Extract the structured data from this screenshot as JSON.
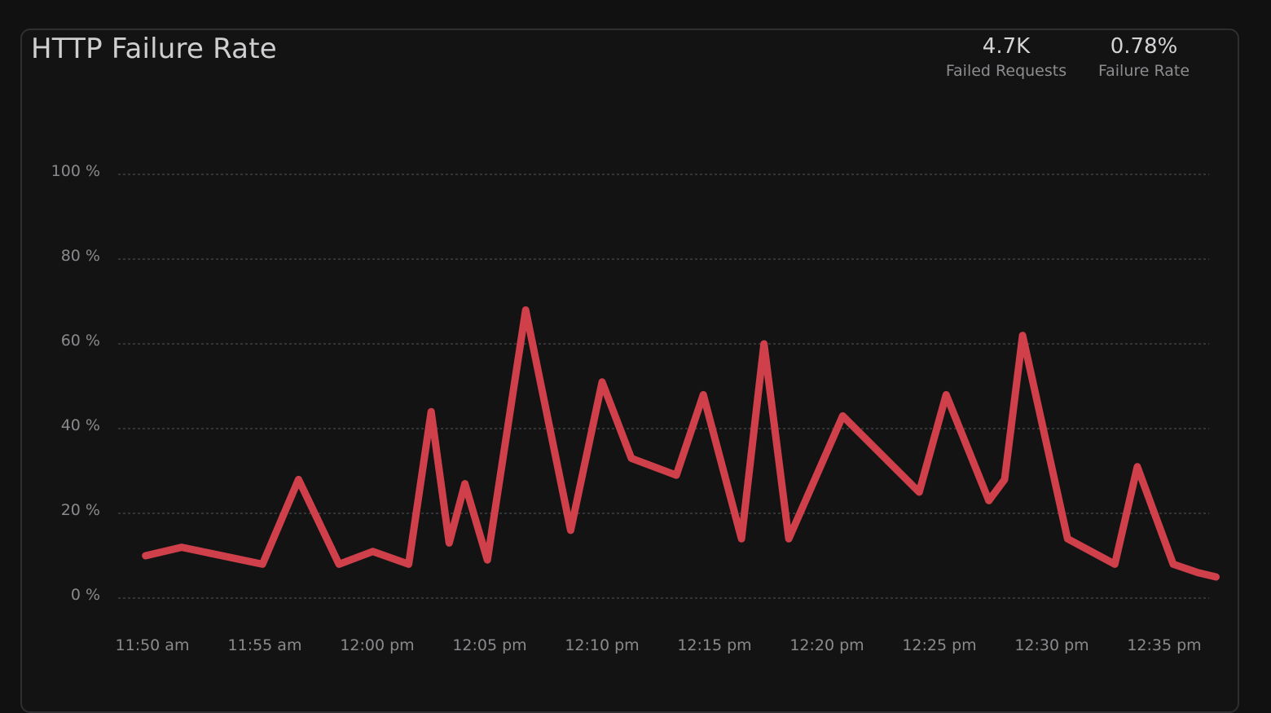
{
  "panel": {
    "title": "HTTP Failure Rate",
    "stats": [
      {
        "value": "4.7K",
        "label": "Failed Requests"
      },
      {
        "value": "0.78%",
        "label": "Failure Rate"
      }
    ]
  },
  "colors": {
    "background": "#111112",
    "line": "#d0404a",
    "grid": "#4a4a4e",
    "tick_text": "#8a8a8d"
  },
  "chart_data": {
    "type": "line",
    "title": "HTTP Failure Rate",
    "xlabel": "",
    "ylabel": "",
    "ylim": [
      0,
      100
    ],
    "yticks": [
      "0 %",
      "20 %",
      "40 %",
      "60 %",
      "80 %",
      "100 %"
    ],
    "ytick_values": [
      0,
      20,
      40,
      60,
      80,
      100
    ],
    "xticks": [
      "11:50 am",
      "11:55 am",
      "12:00 pm",
      "12:05 pm",
      "12:10 pm",
      "12:15 pm",
      "12:20 pm",
      "12:25 pm",
      "12:30 pm",
      "12:35 pm"
    ],
    "xtick_values": [
      "11:50",
      "11:55",
      "12:00",
      "12:05",
      "12:10",
      "12:15",
      "12:20",
      "12:25",
      "12:30",
      "12:35"
    ],
    "grid": true,
    "series": [
      {
        "color": "#d0404a",
        "points": [
          {
            "x": "11:49:42",
            "y": 10
          },
          {
            "x": "11:51:18",
            "y": 12
          },
          {
            "x": "11:54:54",
            "y": 8
          },
          {
            "x": "11:56:30",
            "y": 28
          },
          {
            "x": "11:58:18",
            "y": 8
          },
          {
            "x": "11:59:48",
            "y": 11
          },
          {
            "x": "12:01:24",
            "y": 8
          },
          {
            "x": "12:02:24",
            "y": 44
          },
          {
            "x": "12:03:12",
            "y": 13
          },
          {
            "x": "12:03:54",
            "y": 27
          },
          {
            "x": "12:04:54",
            "y": 9
          },
          {
            "x": "12:06:36",
            "y": 68
          },
          {
            "x": "12:08:36",
            "y": 16
          },
          {
            "x": "12:10:00",
            "y": 51
          },
          {
            "x": "12:11:18",
            "y": 33
          },
          {
            "x": "12:13:18",
            "y": 29
          },
          {
            "x": "12:14:30",
            "y": 48
          },
          {
            "x": "12:16:12",
            "y": 14
          },
          {
            "x": "12:17:12",
            "y": 60
          },
          {
            "x": "12:18:18",
            "y": 14
          },
          {
            "x": "12:20:42",
            "y": 43
          },
          {
            "x": "12:24:06",
            "y": 25
          },
          {
            "x": "12:25:18",
            "y": 48
          },
          {
            "x": "12:27:12",
            "y": 23
          },
          {
            "x": "12:27:54",
            "y": 28
          },
          {
            "x": "12:28:42",
            "y": 62
          },
          {
            "x": "12:30:42",
            "y": 14
          },
          {
            "x": "12:32:48",
            "y": 8
          },
          {
            "x": "12:33:48",
            "y": 31
          },
          {
            "x": "12:35:24",
            "y": 8
          },
          {
            "x": "12:36:30",
            "y": 6
          },
          {
            "x": "12:37:18",
            "y": 5
          }
        ]
      }
    ]
  }
}
